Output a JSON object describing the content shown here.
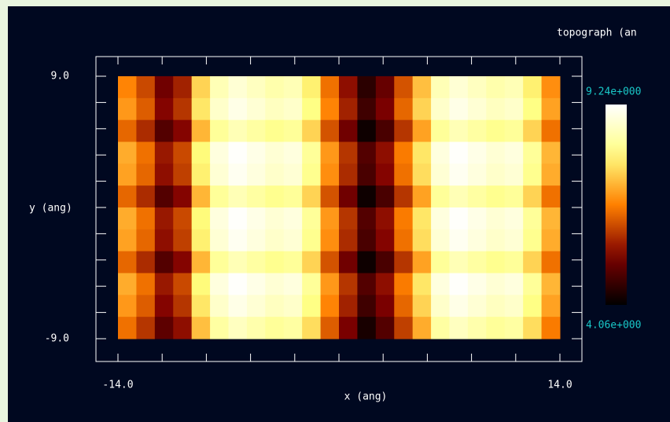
{
  "chart_data": {
    "type": "heatmap",
    "title": "topograph (an",
    "xlabel": "x (ang)",
    "ylabel": "y (ang)",
    "xlim": [
      -14,
      14
    ],
    "ylim": [
      -9,
      9
    ],
    "xticks": [
      {
        "value": -14,
        "label": "-14.0"
      },
      {
        "value": -11.2,
        "label": null
      },
      {
        "value": -8.4,
        "label": null
      },
      {
        "value": -5.6,
        "label": null
      },
      {
        "value": -2.8,
        "label": null
      },
      {
        "value": 0,
        "label": null
      },
      {
        "value": 2.8,
        "label": null
      },
      {
        "value": 5.6,
        "label": null
      },
      {
        "value": 8.4,
        "label": null
      },
      {
        "value": 11.2,
        "label": null
      },
      {
        "value": 14,
        "label": "14.0"
      }
    ],
    "yticks": [
      {
        "value": 9,
        "label": "9.0"
      },
      {
        "value": 7.2,
        "label": null
      },
      {
        "value": 5.4,
        "label": null
      },
      {
        "value": 3.6,
        "label": null
      },
      {
        "value": 1.8,
        "label": null
      },
      {
        "value": 0,
        "label": null
      },
      {
        "value": -1.8,
        "label": null
      },
      {
        "value": -3.6,
        "label": null
      },
      {
        "value": -5.4,
        "label": null
      },
      {
        "value": -7.2,
        "label": null
      },
      {
        "value": -9,
        "label": "-9.0"
      }
    ],
    "zlim": [
      4.06,
      9.24
    ],
    "zticks": [
      {
        "value": 9.24,
        "label": "9.24e+000"
      },
      {
        "value": 4.06,
        "label": "4.06e+000"
      }
    ],
    "colormap": "afmhot",
    "z": [
      [
        6.7,
        6.1,
        5.2,
        5.7,
        7.5,
        8.5,
        8.8,
        8.6,
        8.4,
        8.5,
        7.8,
        6.5,
        5.5,
        4.5,
        5.1,
        6.2,
        7.3,
        8.5,
        8.8,
        8.6,
        8.4,
        8.5,
        7.8,
        6.8
      ],
      [
        6.9,
        6.3,
        5.4,
        5.9,
        7.7,
        8.7,
        9.0,
        8.8,
        8.6,
        8.7,
        8.0,
        6.7,
        5.7,
        4.7,
        5.3,
        6.4,
        7.5,
        8.7,
        9.0,
        8.8,
        8.6,
        8.7,
        8.0,
        7.0
      ],
      [
        6.4,
        5.8,
        4.9,
        5.4,
        7.2,
        8.2,
        8.5,
        8.3,
        8.1,
        8.2,
        7.5,
        6.2,
        5.2,
        4.2,
        4.8,
        5.9,
        7.0,
        8.2,
        8.5,
        8.3,
        8.1,
        8.2,
        7.5,
        6.5
      ],
      [
        7.1,
        6.5,
        5.6,
        6.1,
        7.9,
        8.9,
        9.2,
        9.0,
        8.8,
        8.9,
        8.2,
        6.9,
        5.9,
        4.9,
        5.5,
        6.6,
        7.7,
        8.9,
        9.2,
        9.0,
        8.8,
        8.9,
        8.2,
        7.2
      ],
      [
        7.0,
        6.4,
        5.5,
        6.0,
        7.8,
        8.8,
        9.1,
        8.9,
        8.7,
        8.8,
        8.1,
        6.8,
        5.8,
        4.8,
        5.4,
        6.5,
        7.6,
        8.8,
        9.1,
        8.9,
        8.7,
        8.8,
        8.1,
        7.1
      ],
      [
        6.4,
        5.8,
        4.9,
        5.4,
        7.2,
        8.2,
        8.5,
        8.3,
        8.1,
        8.2,
        7.5,
        6.2,
        5.2,
        4.2,
        4.8,
        5.9,
        7.0,
        8.2,
        8.5,
        8.3,
        8.1,
        8.2,
        7.5,
        6.5
      ],
      [
        7.1,
        6.5,
        5.6,
        6.1,
        7.9,
        8.9,
        9.2,
        9.0,
        8.8,
        8.9,
        8.2,
        6.9,
        5.9,
        4.9,
        5.5,
        6.6,
        7.7,
        8.9,
        9.2,
        9.0,
        8.8,
        8.9,
        8.2,
        7.2
      ],
      [
        7.0,
        6.4,
        5.5,
        6.0,
        7.8,
        8.8,
        9.1,
        8.9,
        8.7,
        8.8,
        8.1,
        6.8,
        5.8,
        4.8,
        5.4,
        6.5,
        7.6,
        8.8,
        9.1,
        8.9,
        8.7,
        8.8,
        8.1,
        7.1
      ],
      [
        6.4,
        5.8,
        4.9,
        5.4,
        7.2,
        8.2,
        8.5,
        8.3,
        8.1,
        8.2,
        7.5,
        6.2,
        5.2,
        4.2,
        4.8,
        5.9,
        7.0,
        8.2,
        8.5,
        8.3,
        8.1,
        8.2,
        7.5,
        6.5
      ],
      [
        7.1,
        6.5,
        5.6,
        6.1,
        7.9,
        8.9,
        9.2,
        9.0,
        8.8,
        8.9,
        8.2,
        6.9,
        5.9,
        4.9,
        5.5,
        6.6,
        7.7,
        8.9,
        9.2,
        9.0,
        8.8,
        8.9,
        8.2,
        7.2
      ],
      [
        6.9,
        6.3,
        5.4,
        5.9,
        7.7,
        8.7,
        9.0,
        8.8,
        8.6,
        8.7,
        8.0,
        6.7,
        5.7,
        4.7,
        5.3,
        6.4,
        7.5,
        8.7,
        9.0,
        8.8,
        8.6,
        8.7,
        8.0,
        7.0
      ],
      [
        6.5,
        5.9,
        5.0,
        5.5,
        7.3,
        8.3,
        8.6,
        8.4,
        8.2,
        8.3,
        7.6,
        6.3,
        5.3,
        4.3,
        4.9,
        6.0,
        7.1,
        8.3,
        8.6,
        8.4,
        8.2,
        8.3,
        7.6,
        6.6
      ]
    ]
  }
}
